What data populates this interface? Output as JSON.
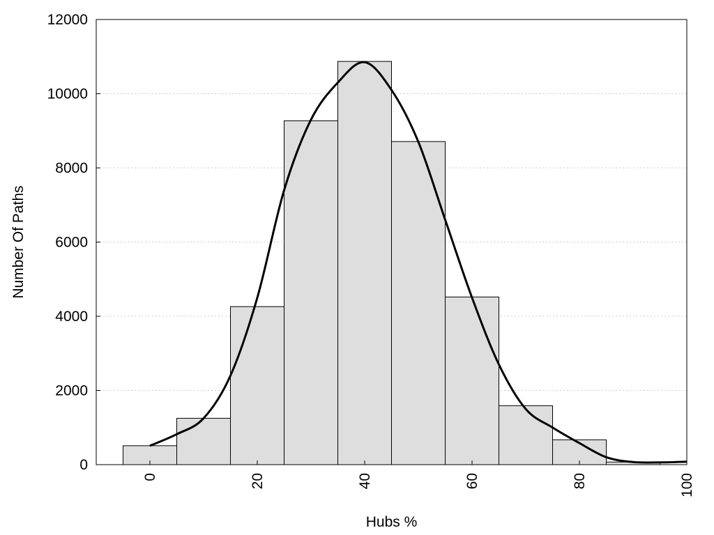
{
  "chart_data": {
    "type": "bar",
    "xlabel": "Hubs %",
    "ylabel": "Number Of Paths",
    "xlim": [
      -10,
      100
    ],
    "ylim": [
      0,
      12000
    ],
    "x_ticks": [
      0,
      20,
      40,
      60,
      80,
      100
    ],
    "y_ticks": [
      0,
      2000,
      4000,
      6000,
      8000,
      10000,
      12000
    ],
    "grid": "horizontal dotted",
    "bar_width": 10,
    "bars": [
      {
        "x": 0,
        "value": 510
      },
      {
        "x": 10,
        "value": 1250
      },
      {
        "x": 20,
        "value": 4260
      },
      {
        "x": 30,
        "value": 9270
      },
      {
        "x": 40,
        "value": 10870
      },
      {
        "x": 50,
        "value": 8710
      },
      {
        "x": 60,
        "value": 4520
      },
      {
        "x": 70,
        "value": 1590
      },
      {
        "x": 80,
        "value": 670
      },
      {
        "x": 90,
        "value": 70
      }
    ],
    "curve": {
      "x": [
        0,
        5,
        10,
        15,
        20,
        25,
        30,
        35,
        40,
        45,
        50,
        55,
        60,
        65,
        70,
        75,
        80,
        85,
        90,
        95,
        100
      ],
      "y": [
        510,
        820,
        1250,
        2400,
        4500,
        7400,
        9300,
        10300,
        10850,
        10100,
        8700,
        6600,
        4500,
        2700,
        1500,
        1000,
        580,
        200,
        70,
        60,
        80
      ]
    },
    "colors": {
      "bar_fill": "#dedede",
      "bar_stroke": "#000000",
      "curve": "#000000",
      "grid": "#cccccc"
    }
  }
}
